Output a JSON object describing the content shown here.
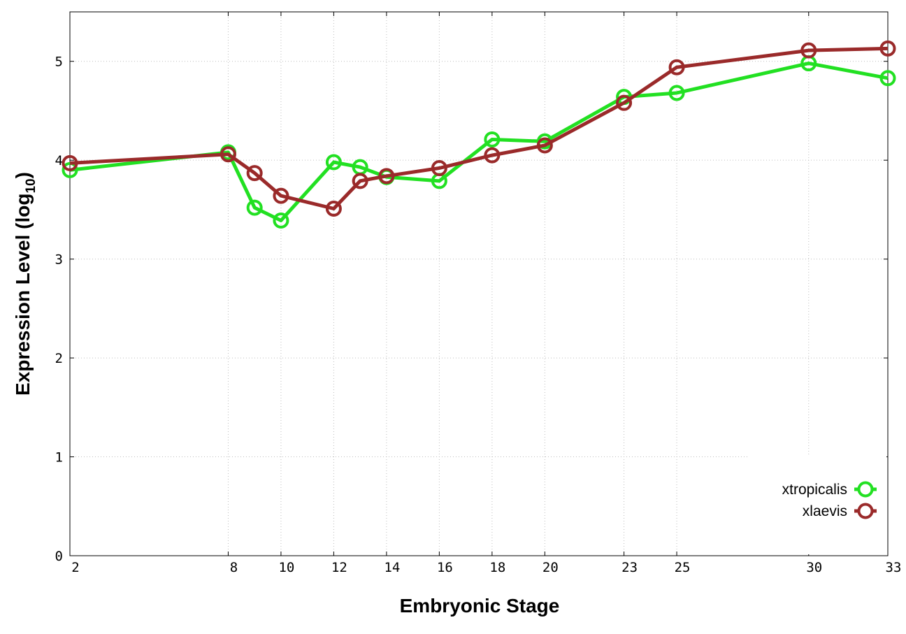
{
  "chart_data": {
    "type": "line",
    "xlabel": "Embryonic Stage",
    "ylabel": "Expression Level (log",
    "ylabel_sub": "10",
    "ylabel_end": ")",
    "xlim": [
      2,
      33
    ],
    "ylim": [
      0,
      5.5
    ],
    "xticks": [
      2,
      8,
      10,
      12,
      14,
      16,
      18,
      20,
      23,
      25,
      30,
      33
    ],
    "yticks": [
      0,
      1,
      2,
      3,
      4,
      5
    ],
    "grid": true,
    "legend_position": "bottom-right",
    "series": [
      {
        "name": "xtropicalis",
        "color": "#22e022",
        "x": [
          2,
          8,
          9,
          10,
          12,
          13,
          14,
          16,
          18,
          20,
          23,
          25,
          30,
          33
        ],
        "y": [
          3.9,
          4.08,
          3.52,
          3.39,
          3.98,
          3.93,
          3.83,
          3.79,
          4.21,
          4.19,
          4.64,
          4.68,
          4.98,
          4.83
        ]
      },
      {
        "name": "xlaevis",
        "color": "#9a2a2a",
        "x": [
          2,
          8,
          9,
          10,
          12,
          13,
          14,
          16,
          18,
          20,
          23,
          25,
          30,
          33
        ],
        "y": [
          3.97,
          4.06,
          3.87,
          3.64,
          3.51,
          3.79,
          3.84,
          3.92,
          4.05,
          4.15,
          4.58,
          4.94,
          5.11,
          5.13
        ]
      }
    ]
  }
}
